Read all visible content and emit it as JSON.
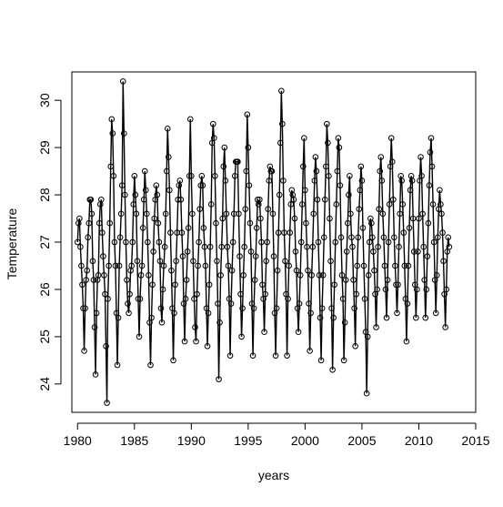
{
  "chart_data": {
    "type": "line",
    "xlabel": "years",
    "ylabel": "Temperature",
    "xlim": [
      1979.5,
      2015.0
    ],
    "ylim": [
      23.4,
      30.6
    ],
    "xticks": [
      1980,
      1985,
      1990,
      1995,
      2000,
      2005,
      2010,
      2015
    ],
    "yticks": [
      24,
      25,
      26,
      27,
      28,
      29,
      30
    ],
    "xtick_labels": [
      "1980",
      "1985",
      "1990",
      "1995",
      "2000",
      "2005",
      "2010",
      "2015"
    ],
    "ytick_labels": [
      "24",
      "25",
      "26",
      "27",
      "28",
      "29",
      "30"
    ],
    "frequency": "monthly",
    "marker": "open-circle",
    "line_color": "#000000",
    "grid": false,
    "legend": "none",
    "series": [
      {
        "x_start": 1980.0,
        "x_step": 0.08333,
        "values": [
          27.0,
          27.4,
          27.5,
          26.9,
          26.5,
          26.1,
          25.6,
          24.7,
          25.6,
          26.2,
          26.4,
          27.1,
          27.4,
          27.9,
          27.9,
          27.6,
          26.6,
          26.2,
          25.2,
          24.2,
          25.5,
          26.2,
          26.3,
          27.4,
          27.8,
          27.9,
          27.2,
          26.7,
          26.3,
          25.9,
          24.8,
          23.6,
          25.8,
          26.5,
          27.4,
          28.6,
          29.6,
          29.3,
          28.4,
          27.0,
          26.5,
          25.5,
          24.4,
          25.4,
          26.5,
          27.1,
          27.6,
          28.2,
          30.4,
          29.3,
          28.0,
          27.0,
          26.2,
          25.7,
          25.5,
          25.9,
          26.4,
          26.5,
          27.0,
          27.8,
          28.4,
          28.0,
          27.6,
          26.6,
          25.8,
          25.0,
          25.8,
          26.3,
          26.5,
          27.3,
          27.9,
          28.5,
          28.1,
          27.6,
          27.0,
          26.3,
          25.3,
          24.4,
          25.4,
          26.1,
          26.8,
          27.5,
          27.9,
          28.2,
          28.0,
          27.4,
          27.0,
          26.6,
          25.6,
          25.3,
          26.0,
          26.5,
          26.9,
          27.6,
          28.5,
          29.4,
          28.8,
          28.1,
          27.2,
          26.4,
          25.6,
          24.5,
          25.5,
          26.1,
          26.6,
          27.2,
          27.9,
          28.2,
          28.3,
          27.9,
          27.2,
          26.7,
          25.7,
          24.9,
          25.8,
          26.2,
          26.8,
          27.3,
          28.4,
          29.6,
          28.4,
          27.6,
          26.6,
          25.8,
          25.2,
          24.9,
          25.9,
          26.5,
          27.0,
          27.7,
          28.2,
          28.4,
          28.2,
          27.3,
          26.9,
          26.5,
          25.6,
          24.8,
          25.5,
          26.1,
          26.9,
          27.8,
          29.1,
          29.5,
          29.2,
          28.4,
          27.4,
          26.6,
          25.7,
          24.1,
          25.3,
          26.3,
          26.9,
          27.5,
          28.6,
          29.0,
          28.3,
          27.6,
          26.9,
          26.5,
          25.8,
          24.6,
          25.7,
          26.4,
          27.0,
          27.6,
          28.4,
          28.7,
          28.7,
          28.7,
          27.6,
          26.7,
          25.9,
          25.0,
          25.6,
          26.3,
          26.9,
          27.7,
          28.5,
          29.7,
          29.0,
          28.2,
          27.4,
          26.8,
          25.7,
          24.6,
          25.6,
          26.2,
          26.7,
          27.3,
          27.9,
          27.8,
          27.9,
          27.5,
          27.0,
          26.1,
          25.8,
          25.1,
          25.9,
          26.6,
          27.0,
          27.7,
          28.3,
          28.6,
          28.5,
          28.5,
          27.6,
          26.7,
          25.5,
          24.6,
          25.6,
          26.4,
          27.2,
          28.0,
          29.1,
          30.2,
          29.5,
          28.3,
          27.2,
          26.6,
          25.9,
          24.6,
          25.8,
          26.5,
          27.2,
          27.8,
          28.1,
          28.0,
          27.9,
          27.5,
          26.8,
          26.4,
          25.6,
          25.1,
          25.7,
          26.3,
          27.0,
          27.8,
          28.6,
          29.2,
          28.1,
          27.4,
          26.9,
          26.4,
          25.7,
          24.7,
          25.5,
          26.3,
          26.9,
          27.6,
          28.3,
          28.8,
          28.5,
          27.9,
          27.0,
          26.3,
          25.4,
          24.5,
          25.6,
          26.3,
          27.1,
          27.9,
          28.6,
          29.5,
          29.1,
          28.4,
          27.5,
          26.6,
          25.6,
          24.3,
          25.4,
          26.1,
          27.0,
          27.8,
          28.5,
          29.2,
          29.0,
          28.2,
          27.1,
          26.3,
          25.8,
          24.5,
          25.3,
          26.2,
          26.8,
          27.4,
          28.0,
          28.4,
          27.6,
          27.1,
          26.9,
          26.2,
          25.6,
          24.8,
          25.9,
          26.5,
          27.1,
          27.7,
          28.1,
          28.6,
          28.3,
          27.3,
          26.5,
          25.8,
          25.1,
          23.8,
          25.0,
          26.3,
          27.0,
          27.5,
          27.4,
          27.1,
          26.8,
          26.4,
          25.9,
          25.2,
          26.0,
          26.9,
          27.7,
          28.5,
          28.8,
          28.3,
          27.6,
          27.1,
          26.5,
          26.0,
          25.4,
          26.2,
          27.0,
          27.8,
          28.6,
          29.2,
          28.7,
          27.9,
          27.1,
          26.5,
          26.1,
          25.5,
          26.1,
          26.9,
          27.6,
          28.4,
          28.3,
          27.8,
          27.2,
          26.5,
          25.8,
          24.9,
          25.7,
          26.5,
          27.3,
          28.1,
          28.4,
          28.3,
          27.5,
          26.8,
          26.1,
          25.4,
          26.0,
          26.8,
          27.5,
          28.3,
          28.8,
          28.4,
          27.6,
          26.9,
          26.2,
          25.4,
          26.0,
          26.7,
          27.4,
          28.2,
          28.9,
          29.2,
          28.6,
          27.8,
          27.0,
          26.2,
          25.5,
          26.3,
          27.1,
          27.7,
          28.1,
          27.8,
          27.6,
          27.2,
          26.6,
          25.9,
          25.2,
          26.0,
          26.8,
          27.1,
          26.9
        ]
      }
    ]
  }
}
